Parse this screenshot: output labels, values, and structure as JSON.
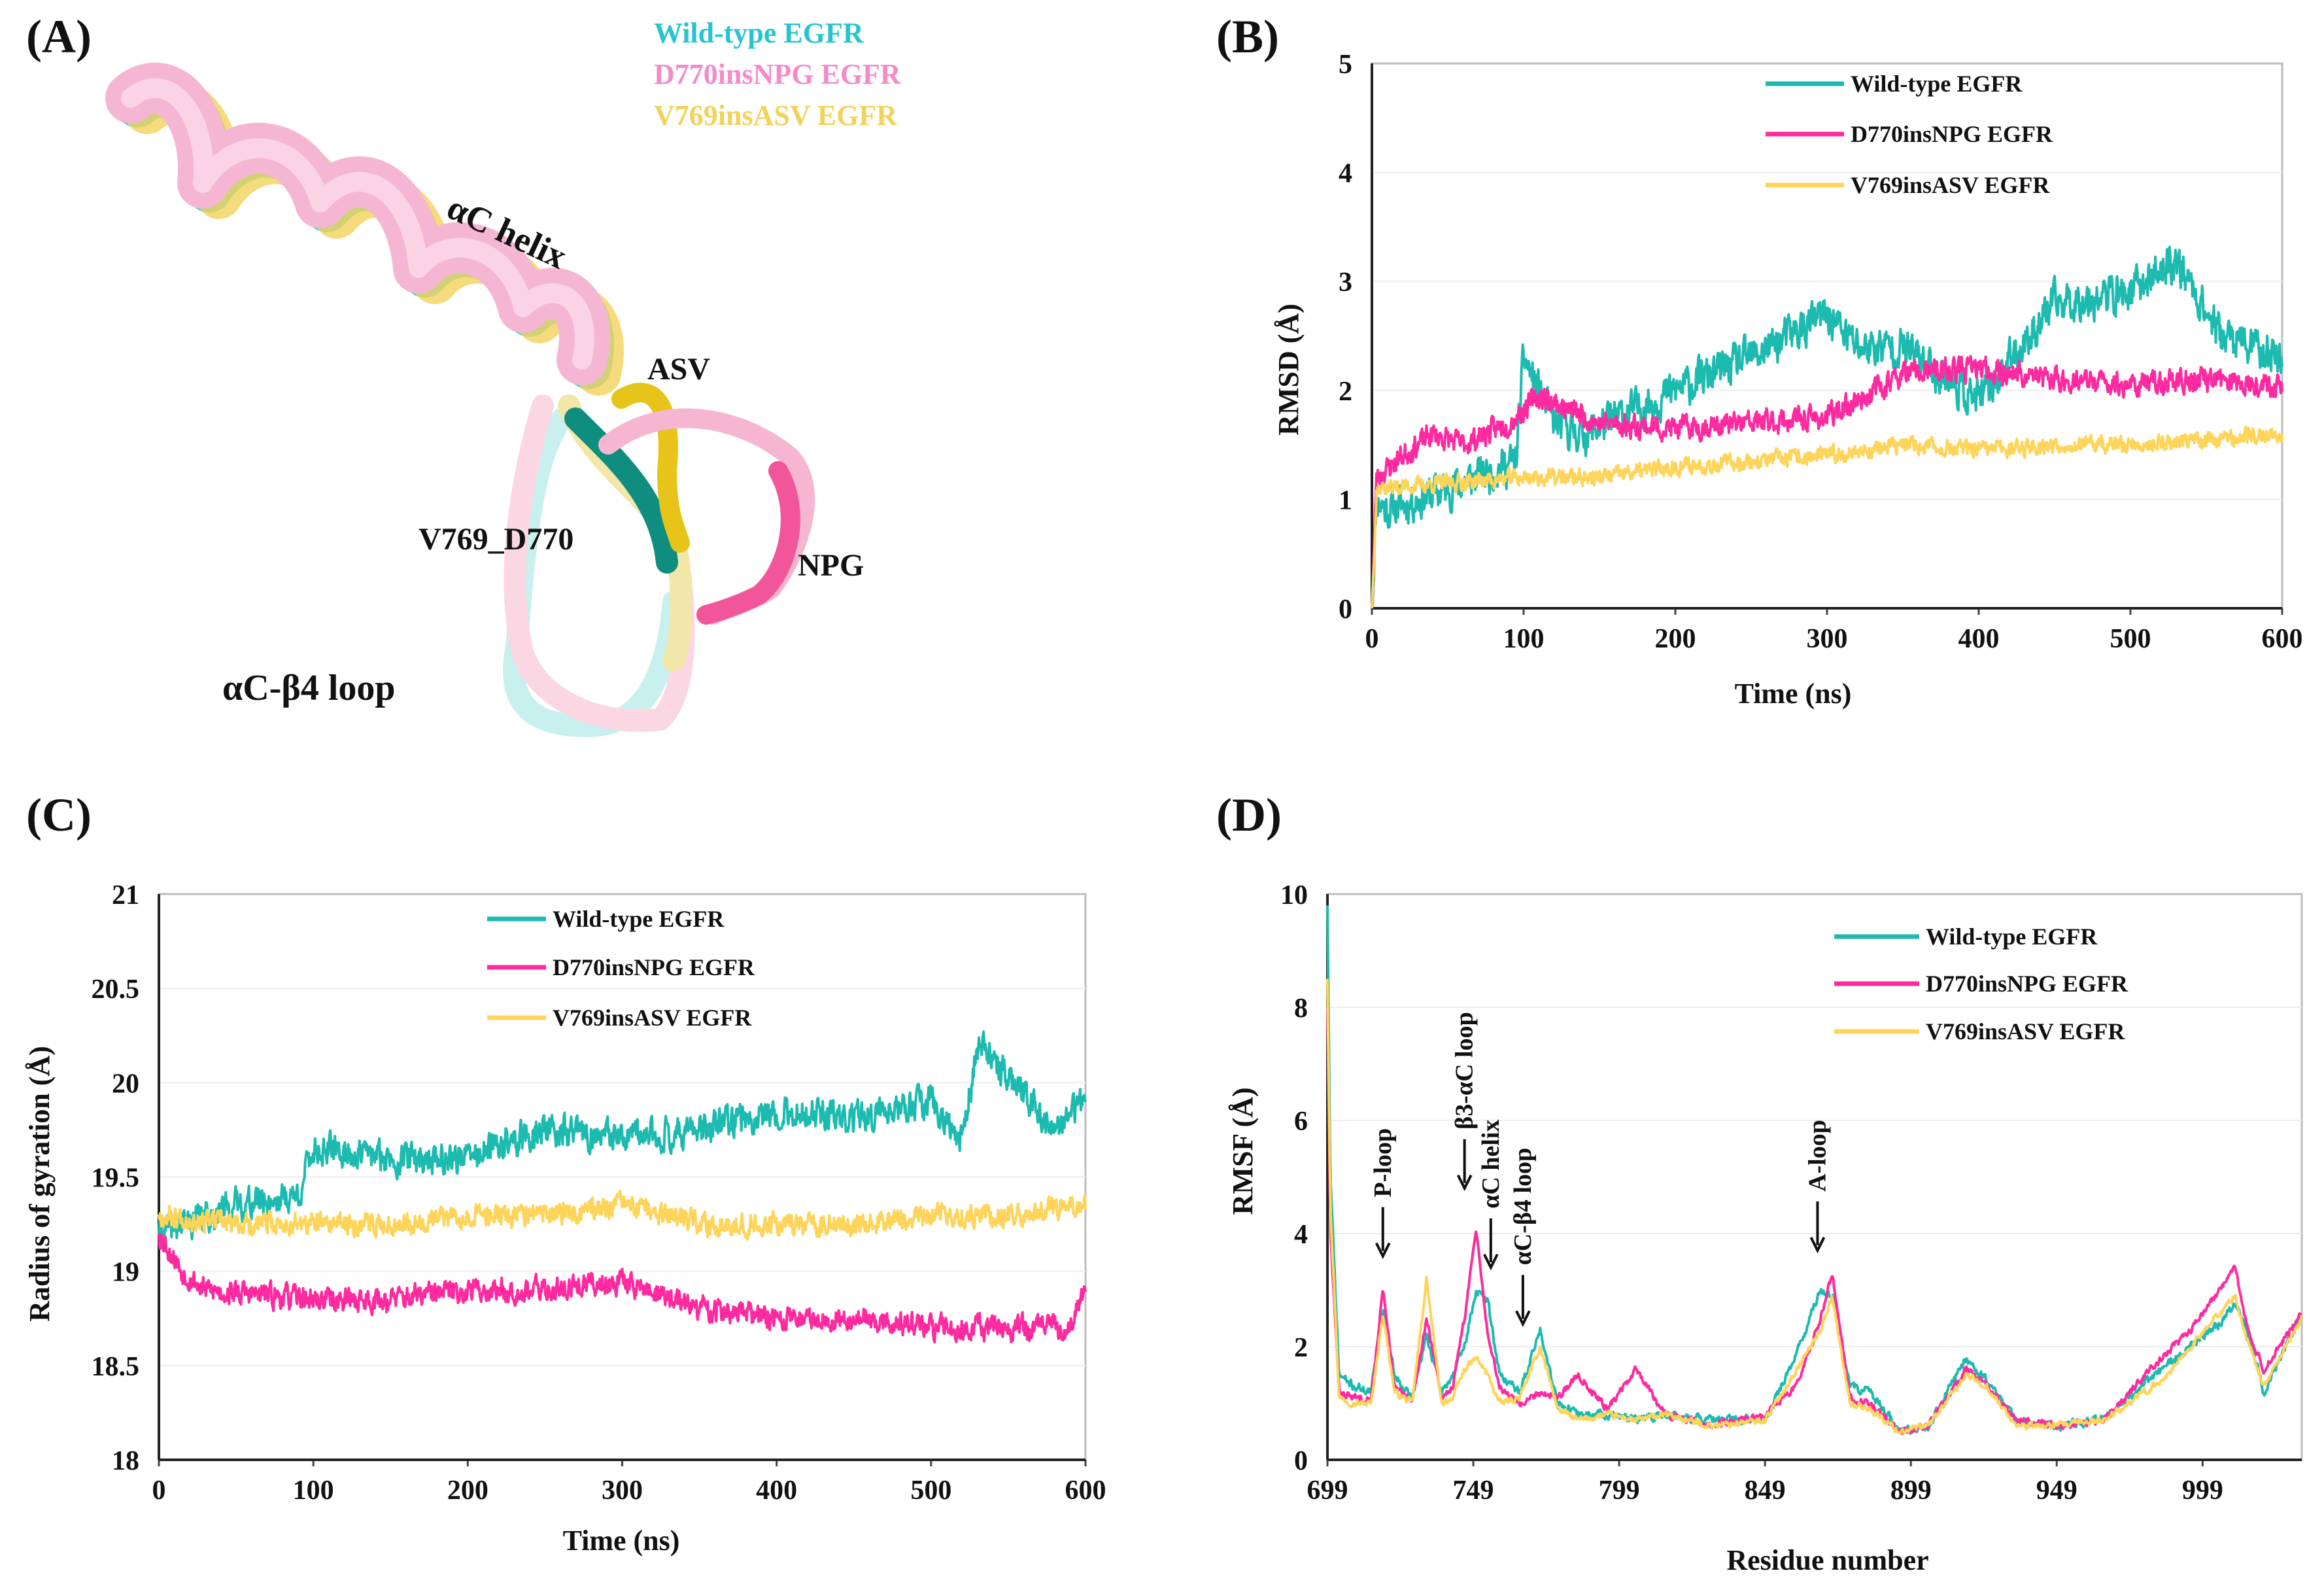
{
  "figure": {
    "colors": {
      "wt": "#1dbab0",
      "npg": "#ff2aa0",
      "asv": "#ffd45a",
      "axis": "#222222",
      "grid": "#e3e3e3"
    }
  },
  "panelA": {
    "label": "(A)",
    "legend": [
      "Wild-type EGFR",
      "D770insNPG EGFR",
      "V769insASV EGFR"
    ],
    "legend_colors": [
      "#27c4cf",
      "#f58ac9",
      "#f2d25a"
    ],
    "labels": {
      "helix": "αC helix",
      "asv": "ASV",
      "npg": "NPG",
      "v769": "V769_D770",
      "loop": "αC-β4 loop"
    }
  },
  "chart_data": [
    {
      "id": "B",
      "panel_label": "(B)",
      "type": "line",
      "xlabel": "Time (ns)",
      "ylabel": "RMSD (Å)",
      "xlim": [
        0,
        600
      ],
      "ylim": [
        0,
        5
      ],
      "xticks": [
        "0",
        "100",
        "200",
        "300",
        "400",
        "500",
        "600"
      ],
      "yticks": [
        "0",
        "1",
        "2",
        "3",
        "4",
        "5"
      ],
      "legend": [
        "Wild-type EGFR",
        "D770insNPG EGFR",
        "V769insASV EGFR"
      ],
      "legend_position": "top-center",
      "series": [
        {
          "name": "Wild-type EGFR",
          "color": "#1dbab0",
          "noise": 0.28,
          "seed": 11,
          "x": [
            0,
            3,
            10,
            50,
            95,
            100,
            110,
            120,
            140,
            170,
            200,
            250,
            300,
            320,
            350,
            400,
            450,
            500,
            530,
            560,
            600
          ],
          "y": [
            0,
            1.0,
            0.9,
            1.1,
            1.35,
            2.3,
            2.0,
            1.7,
            1.6,
            1.8,
            2.0,
            2.3,
            2.7,
            2.4,
            2.4,
            1.9,
            2.8,
            2.9,
            3.2,
            2.5,
            2.3
          ]
        },
        {
          "name": "D770insNPG EGFR",
          "color": "#ff2aa0",
          "noise": 0.17,
          "seed": 23,
          "x": [
            0,
            3,
            20,
            40,
            60,
            90,
            110,
            150,
            200,
            250,
            300,
            350,
            400,
            450,
            500,
            550,
            600
          ],
          "y": [
            0,
            1.2,
            1.4,
            1.6,
            1.5,
            1.7,
            1.95,
            1.7,
            1.65,
            1.7,
            1.75,
            2.15,
            2.2,
            2.1,
            2.05,
            2.1,
            2.05
          ]
        },
        {
          "name": "V769insASV EGFR",
          "color": "#ffd45a",
          "noise": 0.12,
          "seed": 37,
          "x": [
            0,
            3,
            50,
            100,
            150,
            200,
            250,
            300,
            350,
            400,
            450,
            500,
            550,
            600
          ],
          "y": [
            0,
            1.1,
            1.15,
            1.2,
            1.2,
            1.3,
            1.35,
            1.4,
            1.5,
            1.45,
            1.5,
            1.5,
            1.55,
            1.6
          ]
        }
      ]
    },
    {
      "id": "C",
      "panel_label": "(C)",
      "type": "line",
      "xlabel": "Time (ns)",
      "ylabel": "Radius of gyration (Å)",
      "xlim": [
        0,
        600
      ],
      "ylim": [
        18,
        21
      ],
      "xticks": [
        "0",
        "100",
        "200",
        "300",
        "400",
        "500",
        "600"
      ],
      "yticks": [
        "18",
        "18.5",
        "19",
        "19.5",
        "20",
        "20.5",
        "21"
      ],
      "legend": [
        "Wild-type EGFR",
        "D770insNPG EGFR",
        "V769insASV EGFR"
      ],
      "legend_position": "top-center",
      "series": [
        {
          "name": "Wild-type EGFR",
          "color": "#1dbab0",
          "noise": 0.13,
          "seed": 41,
          "x": [
            0,
            50,
            90,
            100,
            150,
            200,
            250,
            300,
            350,
            400,
            450,
            500,
            520,
            530,
            560,
            580,
            600
          ],
          "y": [
            19.2,
            19.35,
            19.4,
            19.65,
            19.6,
            19.6,
            19.75,
            19.7,
            19.75,
            19.85,
            19.8,
            19.9,
            19.7,
            20.2,
            19.95,
            19.75,
            19.9
          ]
        },
        {
          "name": "D770insNPG EGFR",
          "color": "#ff2aa0",
          "noise": 0.1,
          "seed": 53,
          "x": [
            0,
            15,
            30,
            100,
            150,
            200,
            250,
            300,
            350,
            400,
            450,
            500,
            550,
            590,
            600
          ],
          "y": [
            19.2,
            19.0,
            18.9,
            18.85,
            18.85,
            18.9,
            18.9,
            18.95,
            18.8,
            18.75,
            18.75,
            18.7,
            18.7,
            18.7,
            18.9
          ]
        },
        {
          "name": "V769insASV EGFR",
          "color": "#ffd45a",
          "noise": 0.09,
          "seed": 67,
          "x": [
            0,
            50,
            100,
            150,
            200,
            250,
            300,
            350,
            400,
            450,
            500,
            550,
            600
          ],
          "y": [
            19.3,
            19.25,
            19.25,
            19.25,
            19.3,
            19.3,
            19.35,
            19.25,
            19.25,
            19.25,
            19.3,
            19.3,
            19.35
          ]
        }
      ]
    },
    {
      "id": "D",
      "panel_label": "(D)",
      "type": "line",
      "xlabel": "Residue number",
      "ylabel": "RMSF (Å)",
      "xlim": [
        699,
        1033
      ],
      "ylim": [
        0,
        10
      ],
      "xtick_values": [
        699,
        749,
        799,
        849,
        899,
        949,
        999
      ],
      "xticks": [
        "699",
        "749",
        "799",
        "849",
        "899",
        "949",
        "999"
      ],
      "yticks": [
        "0",
        "2",
        "4",
        "6",
        "8",
        "10"
      ],
      "legend": [
        "Wild-type EGFR",
        "D770insNPG EGFR",
        "V769insASV EGFR"
      ],
      "legend_position": "top-right",
      "annotations": [
        {
          "text": "P-loop",
          "x": 718,
          "y": 3.6
        },
        {
          "text": "β3-αC loop",
          "x": 746,
          "y": 4.8
        },
        {
          "text": "αC helix",
          "x": 755,
          "y": 3.4
        },
        {
          "text": "αC-β4 loop",
          "x": 766,
          "y": 2.4
        },
        {
          "text": "A-loop",
          "x": 867,
          "y": 3.7
        }
      ],
      "series": [
        {
          "name": "Wild-type EGFR",
          "color": "#1dbab0",
          "noise": 0.12,
          "seed": 71,
          "x": [
            699,
            700,
            703,
            708,
            714,
            718,
            722,
            728,
            733,
            738,
            742,
            746,
            750,
            754,
            758,
            765,
            772,
            778,
            785,
            795,
            805,
            815,
            830,
            849,
            860,
            868,
            872,
            878,
            885,
            895,
            905,
            918,
            925,
            935,
            949,
            965,
            985,
            995,
            1005,
            1010,
            1015,
            1020,
            1033
          ],
          "y": [
            9.8,
            5.0,
            1.5,
            1.3,
            1.2,
            2.7,
            1.5,
            1.1,
            2.2,
            1.2,
            1.5,
            2.0,
            3.0,
            2.8,
            1.5,
            1.2,
            2.3,
            1.0,
            0.8,
            0.8,
            0.7,
            0.8,
            0.7,
            0.7,
            1.9,
            3.0,
            2.9,
            1.3,
            1.2,
            0.5,
            0.6,
            1.8,
            1.4,
            0.7,
            0.6,
            0.7,
            1.6,
            2.0,
            2.4,
            2.8,
            2.2,
            1.2,
            2.6
          ]
        },
        {
          "name": "D770insNPG EGFR",
          "color": "#ff2aa0",
          "noise": 0.1,
          "seed": 83,
          "x": [
            699,
            700,
            703,
            708,
            714,
            718,
            722,
            728,
            733,
            738,
            742,
            746,
            750,
            754,
            758,
            765,
            772,
            778,
            785,
            795,
            805,
            815,
            830,
            849,
            860,
            868,
            872,
            878,
            885,
            895,
            905,
            918,
            925,
            935,
            949,
            965,
            985,
            995,
            1005,
            1010,
            1015,
            1020,
            1033
          ],
          "y": [
            8.0,
            4.0,
            1.2,
            1.1,
            1.1,
            3.0,
            1.3,
            1.0,
            2.5,
            1.1,
            1.3,
            2.5,
            4.1,
            2.2,
            1.3,
            1.0,
            1.2,
            1.1,
            1.5,
            0.9,
            1.6,
            0.8,
            0.6,
            0.8,
            1.3,
            2.5,
            3.3,
            1.1,
            1.0,
            0.5,
            0.6,
            1.6,
            1.3,
            0.7,
            0.6,
            0.7,
            1.8,
            2.3,
            3.0,
            3.4,
            2.2,
            1.6,
            2.6
          ]
        },
        {
          "name": "V769insASV EGFR",
          "color": "#ffd45a",
          "noise": 0.09,
          "seed": 97,
          "x": [
            699,
            700,
            703,
            708,
            714,
            718,
            722,
            728,
            733,
            738,
            742,
            746,
            750,
            754,
            758,
            765,
            772,
            778,
            785,
            795,
            805,
            815,
            830,
            849,
            860,
            868,
            872,
            878,
            885,
            895,
            905,
            918,
            925,
            935,
            949,
            965,
            985,
            995,
            1005,
            1010,
            1015,
            1020,
            1033
          ],
          "y": [
            8.5,
            4.5,
            1.1,
            1.0,
            1.0,
            2.6,
            1.2,
            1.0,
            3.2,
            1.0,
            1.1,
            1.6,
            1.8,
            1.5,
            1.0,
            1.1,
            2.0,
            0.9,
            0.7,
            0.8,
            0.7,
            0.8,
            0.6,
            0.7,
            1.6,
            2.3,
            2.9,
            1.0,
            0.9,
            0.5,
            0.6,
            1.5,
            1.3,
            0.6,
            0.6,
            0.7,
            1.4,
            2.0,
            2.6,
            2.9,
            2.0,
            1.3,
            2.5
          ]
        }
      ]
    }
  ]
}
